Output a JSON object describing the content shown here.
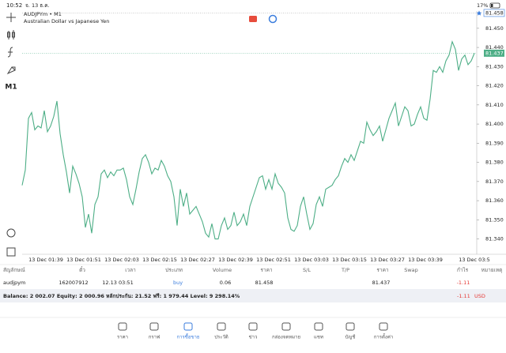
{
  "status_bar": {
    "time": "10:52",
    "date": "จ. 13 ธ.ค.",
    "battery": "17%"
  },
  "chart": {
    "type": "line",
    "symbol": "AUDJPYm • M1",
    "description": "Australian Dollar vs Japanese Yen",
    "timeframe": "M1",
    "color": "#4dae86",
    "values": [
      81.368,
      81.376,
      81.403,
      81.406,
      81.397,
      81.399,
      81.398,
      81.407,
      81.396,
      81.399,
      81.404,
      81.412,
      81.395,
      81.384,
      81.375,
      81.364,
      81.378,
      81.374,
      81.369,
      81.362,
      81.346,
      81.353,
      81.343,
      81.358,
      81.362,
      81.374,
      81.376,
      81.372,
      81.375,
      81.373,
      81.376,
      81.376,
      81.377,
      81.371,
      81.362,
      81.358,
      81.366,
      81.375,
      81.382,
      81.384,
      81.38,
      81.374,
      81.377,
      81.376,
      81.381,
      81.378,
      81.373,
      81.37,
      81.362,
      81.347,
      81.366,
      81.357,
      81.364,
      81.353,
      81.355,
      81.357,
      81.353,
      81.349,
      81.343,
      81.341,
      81.348,
      81.34,
      81.34,
      81.347,
      81.351,
      81.345,
      81.347,
      81.354,
      81.347,
      81.349,
      81.353,
      81.347,
      81.357,
      81.362,
      81.367,
      81.372,
      81.373,
      81.366,
      81.371,
      81.366,
      81.374,
      81.369,
      81.367,
      81.364,
      81.351,
      81.345,
      81.344,
      81.347,
      81.357,
      81.362,
      81.353,
      81.345,
      81.348,
      81.358,
      81.362,
      81.357,
      81.366,
      81.367,
      81.368,
      81.371,
      81.373,
      81.378,
      81.382,
      81.38,
      81.384,
      81.381,
      81.386,
      81.391,
      81.39,
      81.401,
      81.397,
      81.394,
      81.396,
      81.399,
      81.391,
      81.397,
      81.403,
      81.407,
      81.411,
      81.399,
      81.404,
      81.409,
      81.407,
      81.399,
      81.4,
      81.405,
      81.409,
      81.403,
      81.402,
      81.413,
      81.428,
      81.427,
      81.43,
      81.427,
      81.433,
      81.436,
      81.443,
      81.439,
      81.428,
      81.434,
      81.436,
      81.431,
      81.433,
      81.437
    ],
    "ylim": [
      81.332,
      81.459
    ],
    "yticks": [
      {
        "value": 81.34,
        "label": "81.340"
      },
      {
        "value": 81.35,
        "label": "81.350"
      },
      {
        "value": 81.36,
        "label": "81.360"
      },
      {
        "value": 81.37,
        "label": "81.370"
      },
      {
        "value": 81.38,
        "label": "81.380"
      },
      {
        "value": 81.39,
        "label": "81.390"
      },
      {
        "value": 81.4,
        "label": "81.400"
      },
      {
        "value": 81.41,
        "label": "81.410"
      },
      {
        "value": 81.42,
        "label": "81.420"
      },
      {
        "value": 81.43,
        "label": "81.430"
      },
      {
        "value": 81.44,
        "label": "81.440"
      },
      {
        "value": 81.45,
        "label": "81.450"
      }
    ],
    "xticks": [
      "13 Dec 01:39",
      "13 Dec 01:51",
      "13 Dec 02:03",
      "13 Dec 02:15",
      "13 Dec 02:27",
      "13 Dec 02:39",
      "13 Dec 02:51",
      "13 Dec 03:03",
      "13 Dec 03:15",
      "13 Dec 03:27",
      "13 Dec 03:39",
      "13 Dec 03:5"
    ]
  },
  "positions": {
    "columns": [
      "สัญลักษณ์",
      "ตั๋ว",
      "เวลา",
      "ประเภท",
      "Volume",
      "ราคา",
      "S/L",
      "T/P",
      "ราคา",
      "Swap",
      "กำไร",
      "หมายเหตุ"
    ],
    "rows": [
      {
        "symbol": "audjpym",
        "ticket": "162007912",
        "time": "12.13 03:51",
        "type": "buy",
        "volume": 0.06,
        "open_price": 81.458,
        "price": 81.437,
        "profit": -1.11
      }
    ]
  },
  "account": {
    "summary": "Balance: 2 002.07 Equity: 2 000.96 หลักประกัน: 21.52 ฟรี: 1 979.44 Level: 9 298.14%",
    "total_profit": -1.11,
    "currency": "USD"
  },
  "nav": [
    "ราคา",
    "กราฟ",
    "การซื้อขาย",
    "ประวัติ",
    "ข่าว",
    "กล่องจดหมาย",
    "แชท",
    "บัญชี",
    "การตั้งค่า"
  ]
}
